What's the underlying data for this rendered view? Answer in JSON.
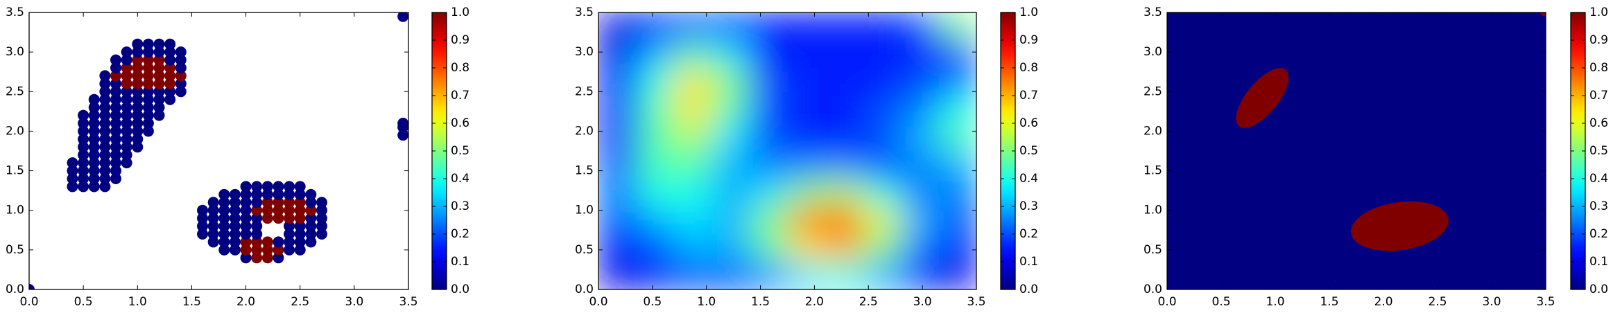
{
  "chart_data": [
    {
      "type": "scatter",
      "xlim": [
        0,
        3.5
      ],
      "ylim": [
        0,
        3.5
      ],
      "xticks": [
        {
          "value": 0,
          "label": "0.0"
        },
        0.5,
        {
          "value": 1,
          "label": "1.0"
        },
        1.5,
        {
          "value": 2,
          "label": "2.0"
        },
        2.5,
        {
          "value": 3,
          "label": "3.0"
        },
        3.5
      ],
      "yticks": [
        {
          "value": 0,
          "label": "0.0"
        },
        0.5,
        {
          "value": 1,
          "label": "1.0"
        },
        1.5,
        {
          "value": 2,
          "label": "2.0"
        },
        2.5,
        {
          "value": 3,
          "label": "3.0"
        },
        3.5
      ],
      "clim": [
        0,
        1
      ],
      "cticks": [
        {
          "value": 0,
          "label": "0.0"
        },
        0.1,
        0.2,
        0.3,
        0.4,
        0.5,
        0.6,
        0.7,
        0.8,
        0.9,
        {
          "value": 1,
          "label": "1.0"
        }
      ],
      "x": [
        0.4,
        0.5,
        0.6,
        0.7,
        0.4,
        0.5,
        0.6,
        0.7,
        0.8,
        0.4,
        0.5,
        0.6,
        0.7,
        0.8,
        0.4,
        0.5,
        0.6,
        0.7,
        0.8,
        0.9,
        0.5,
        0.6,
        0.7,
        0.8,
        0.9,
        0.5,
        0.6,
        0.7,
        0.8,
        0.9,
        1.0,
        0.5,
        0.6,
        0.7,
        0.8,
        0.9,
        1.0,
        0.5,
        0.6,
        0.7,
        0.8,
        0.9,
        1.0,
        1.1,
        0.5,
        0.6,
        0.7,
        0.8,
        0.9,
        1.0,
        1.1,
        0.5,
        0.6,
        0.7,
        0.8,
        0.9,
        1.0,
        1.1,
        1.2,
        0.6,
        0.7,
        0.8,
        0.9,
        1.0,
        1.1,
        1.2,
        0.6,
        0.7,
        0.8,
        0.9,
        1.0,
        1.1,
        1.2,
        1.3,
        0.7,
        0.8,
        0.9,
        1.0,
        1.1,
        1.2,
        1.3,
        1.4,
        0.7,
        0.8,
        0.9,
        1.0,
        1.1,
        1.2,
        1.3,
        1.4,
        0.7,
        0.8,
        0.9,
        1.0,
        1.1,
        1.2,
        1.3,
        1.4,
        0.8,
        0.9,
        1.0,
        1.1,
        1.2,
        1.3,
        1.4,
        0.8,
        0.9,
        1.0,
        1.1,
        1.2,
        1.3,
        1.4,
        0.9,
        1.0,
        1.1,
        1.2,
        1.3,
        1.4,
        1.0,
        1.1,
        1.2,
        1.3,
        2.0,
        2.1,
        2.2,
        2.3,
        1.8,
        1.9,
        2.0,
        2.1,
        2.2,
        2.3,
        2.4,
        2.5,
        1.7,
        1.8,
        1.9,
        2.0,
        2.1,
        2.2,
        2.3,
        2.4,
        2.5,
        2.6,
        1.6,
        1.7,
        1.8,
        1.9,
        2.0,
        2.1,
        2.4,
        2.5,
        2.6,
        2.7,
        1.6,
        1.7,
        1.8,
        1.9,
        2.0,
        2.1,
        2.4,
        2.5,
        2.6,
        2.7,
        1.6,
        1.7,
        1.8,
        1.9,
        2.0,
        2.1,
        2.2,
        2.3,
        2.4,
        2.5,
        2.6,
        2.7,
        1.6,
        1.7,
        1.8,
        1.9,
        2.0,
        2.1,
        2.2,
        2.3,
        2.4,
        2.5,
        2.6,
        2.7,
        1.7,
        1.8,
        1.9,
        2.0,
        2.1,
        2.2,
        2.3,
        2.4,
        2.5,
        2.6,
        2.7,
        1.8,
        1.9,
        2.0,
        2.1,
        2.2,
        2.3,
        2.4,
        2.5,
        2.6,
        2.0,
        2.1,
        2.2,
        2.3,
        2.4,
        2.5,
        0,
        3.45,
        3.45,
        3.45,
        3.45
      ],
      "y": [
        1.3,
        1.3,
        1.3,
        1.3,
        1.4,
        1.4,
        1.4,
        1.4,
        1.4,
        1.5,
        1.5,
        1.5,
        1.5,
        1.5,
        1.6,
        1.6,
        1.6,
        1.6,
        1.6,
        1.6,
        1.7,
        1.7,
        1.7,
        1.7,
        1.7,
        1.8,
        1.8,
        1.8,
        1.8,
        1.8,
        1.8,
        1.9,
        1.9,
        1.9,
        1.9,
        1.9,
        1.9,
        2.0,
        2.0,
        2.0,
        2.0,
        2.0,
        2.0,
        2.0,
        2.1,
        2.1,
        2.1,
        2.1,
        2.1,
        2.1,
        2.1,
        2.2,
        2.2,
        2.2,
        2.2,
        2.2,
        2.2,
        2.2,
        2.2,
        2.3,
        2.3,
        2.3,
        2.3,
        2.3,
        2.3,
        2.3,
        2.4,
        2.4,
        2.4,
        2.4,
        2.4,
        2.4,
        2.4,
        2.4,
        2.5,
        2.5,
        2.5,
        2.5,
        2.5,
        2.5,
        2.5,
        2.5,
        2.6,
        2.6,
        2.6,
        2.6,
        2.6,
        2.6,
        2.6,
        2.6,
        2.7,
        2.7,
        2.7,
        2.7,
        2.7,
        2.7,
        2.7,
        2.7,
        2.8,
        2.8,
        2.8,
        2.8,
        2.8,
        2.8,
        2.8,
        2.9,
        2.9,
        2.9,
        2.9,
        2.9,
        2.9,
        2.9,
        3.0,
        3.0,
        3.0,
        3.0,
        3.0,
        3.0,
        3.1,
        3.1,
        3.1,
        3.1,
        0.4,
        0.4,
        0.4,
        0.4,
        0.5,
        0.5,
        0.5,
        0.5,
        0.5,
        0.5,
        0.5,
        0.5,
        0.6,
        0.6,
        0.6,
        0.6,
        0.6,
        0.6,
        0.6,
        0.6,
        0.6,
        0.6,
        0.7,
        0.7,
        0.7,
        0.7,
        0.7,
        0.7,
        0.7,
        0.7,
        0.7,
        0.7,
        0.8,
        0.8,
        0.8,
        0.8,
        0.8,
        0.8,
        0.8,
        0.8,
        0.8,
        0.8,
        0.9,
        0.9,
        0.9,
        0.9,
        0.9,
        0.9,
        0.9,
        0.9,
        0.9,
        0.9,
        0.9,
        0.9,
        1.0,
        1.0,
        1.0,
        1.0,
        1.0,
        1.0,
        1.0,
        1.0,
        1.0,
        1.0,
        1.0,
        1.0,
        1.1,
        1.1,
        1.1,
        1.1,
        1.1,
        1.1,
        1.1,
        1.1,
        1.1,
        1.1,
        1.1,
        1.2,
        1.2,
        1.2,
        1.2,
        1.2,
        1.2,
        1.2,
        1.2,
        1.2,
        1.3,
        1.3,
        1.3,
        1.3,
        1.3,
        1.3,
        0,
        3.45,
        2.1,
        2.05,
        1.95
      ],
      "values": [
        0,
        0,
        0,
        0,
        0,
        0,
        0,
        0,
        0,
        0,
        0,
        0,
        0,
        0,
        0,
        0,
        0,
        0,
        0,
        0,
        0,
        0,
        0,
        0,
        0,
        0,
        0,
        0,
        0,
        0,
        0,
        0,
        0,
        0,
        0,
        0,
        0,
        0,
        0,
        0,
        0,
        0,
        0,
        0,
        0,
        0,
        0,
        0,
        0,
        0,
        0,
        0,
        0,
        0,
        0,
        0,
        0,
        0,
        0,
        0,
        0,
        0,
        0,
        0,
        0,
        0,
        0,
        0,
        0,
        0,
        0,
        0,
        0,
        0,
        0,
        0,
        0,
        0,
        0,
        0,
        0,
        0,
        0,
        0,
        1,
        1,
        1,
        1,
        1,
        0,
        0,
        1,
        1,
        1,
        1,
        1,
        1,
        1,
        0,
        1,
        1,
        1,
        1,
        1,
        0,
        0,
        0,
        1,
        1,
        1,
        0,
        0,
        0,
        0,
        0,
        0,
        0,
        0,
        0,
        0,
        0,
        0,
        0,
        1,
        1,
        0,
        0,
        0,
        1,
        1,
        1,
        1,
        0,
        0,
        0,
        0,
        0,
        1,
        1,
        1,
        0,
        0,
        0,
        0,
        0,
        0,
        0,
        0,
        0,
        0,
        0,
        0,
        0,
        0,
        0,
        0,
        0,
        0,
        0,
        0,
        0,
        0,
        0,
        0,
        0,
        0,
        0,
        0,
        0,
        0,
        1,
        1,
        1,
        1,
        0,
        0,
        0,
        0,
        0,
        0,
        0,
        1,
        1,
        1,
        1,
        1,
        1,
        0,
        0,
        0,
        0,
        0,
        0,
        1,
        1,
        1,
        1,
        0,
        0,
        0,
        0,
        0,
        0,
        0,
        0,
        0,
        0,
        0,
        0,
        0,
        0,
        0,
        0,
        0,
        0,
        0,
        0,
        0,
        0
      ]
    },
    {
      "type": "heatmap",
      "xlim": [
        0,
        3.5
      ],
      "ylim": [
        0,
        3.5
      ],
      "xticks": [
        {
          "value": 0,
          "label": "0.0"
        },
        0.5,
        {
          "value": 1,
          "label": "1.0"
        },
        1.5,
        {
          "value": 2,
          "label": "2.0"
        },
        2.5,
        {
          "value": 3,
          "label": "3.0"
        },
        3.5
      ],
      "yticks": [
        {
          "value": 0,
          "label": "0.0"
        },
        0.5,
        {
          "value": 1,
          "label": "1.0"
        },
        1.5,
        {
          "value": 2,
          "label": "2.0"
        },
        2.5,
        {
          "value": 3,
          "label": "3.0"
        },
        3.5
      ],
      "clim": [
        0,
        1
      ],
      "cticks": [
        {
          "value": 0,
          "label": "0.0"
        },
        0.1,
        0.2,
        0.3,
        0.4,
        0.5,
        0.6,
        0.7,
        0.8,
        0.9,
        {
          "value": 1,
          "label": "1.0"
        }
      ],
      "z": [
        [
          0.1,
          0.15,
          0.2,
          0.2,
          0.25,
          0.35,
          0.4,
          0.3,
          0.15,
          0.1
        ],
        [
          0.15,
          0.2,
          0.3,
          0.3,
          0.45,
          0.65,
          0.7,
          0.5,
          0.25,
          0.15
        ],
        [
          0.2,
          0.3,
          0.35,
          0.3,
          0.5,
          0.75,
          0.8,
          0.6,
          0.3,
          0.2
        ],
        [
          0.25,
          0.4,
          0.4,
          0.3,
          0.35,
          0.5,
          0.55,
          0.4,
          0.25,
          0.25
        ],
        [
          0.2,
          0.45,
          0.45,
          0.3,
          0.25,
          0.25,
          0.25,
          0.2,
          0.25,
          0.3
        ],
        [
          0.15,
          0.45,
          0.55,
          0.35,
          0.2,
          0.15,
          0.15,
          0.2,
          0.3,
          0.45
        ],
        [
          0.15,
          0.45,
          0.65,
          0.45,
          0.2,
          0.15,
          0.15,
          0.2,
          0.25,
          0.4
        ],
        [
          0.15,
          0.4,
          0.65,
          0.5,
          0.2,
          0.15,
          0.15,
          0.15,
          0.2,
          0.25
        ],
        [
          0.1,
          0.3,
          0.45,
          0.35,
          0.15,
          0.15,
          0.15,
          0.15,
          0.15,
          0.2
        ],
        [
          0.1,
          0.15,
          0.2,
          0.2,
          0.15,
          0.15,
          0.15,
          0.15,
          0.2,
          0.5
        ]
      ]
    },
    {
      "type": "contourf",
      "xlim": [
        0,
        3.5
      ],
      "ylim": [
        0,
        3.5
      ],
      "xticks": [
        {
          "value": 0,
          "label": "0.0"
        },
        0.5,
        {
          "value": 1,
          "label": "1.0"
        },
        1.5,
        {
          "value": 2,
          "label": "2.0"
        },
        2.5,
        {
          "value": 3,
          "label": "3.0"
        },
        3.5
      ],
      "yticks": [
        {
          "value": 0,
          "label": "0.0"
        },
        0.5,
        {
          "value": 1,
          "label": "1.0"
        },
        1.5,
        {
          "value": 2,
          "label": "2.0"
        },
        2.5,
        {
          "value": 3,
          "label": "3.0"
        },
        3.5
      ],
      "clim": [
        0,
        1
      ],
      "cticks": [
        {
          "value": 0,
          "label": "0.0"
        },
        0.1,
        0.2,
        0.3,
        0.4,
        0.5,
        0.6,
        0.7,
        0.8,
        0.9,
        {
          "value": 1,
          "label": "1.0"
        }
      ],
      "background": 0,
      "regions": [
        {
          "value": 1,
          "cx": 0.88,
          "cy": 2.42,
          "rx": 0.42,
          "ry": 0.16,
          "angle": 62
        },
        {
          "value": 1,
          "cx": 2.15,
          "cy": 0.8,
          "rx": 0.46,
          "ry": 0.3,
          "angle": 15
        },
        {
          "value": 1,
          "cx": 3.5,
          "cy": 3.5,
          "rx": 0.05,
          "ry": 0.05,
          "angle": 0
        }
      ]
    }
  ]
}
